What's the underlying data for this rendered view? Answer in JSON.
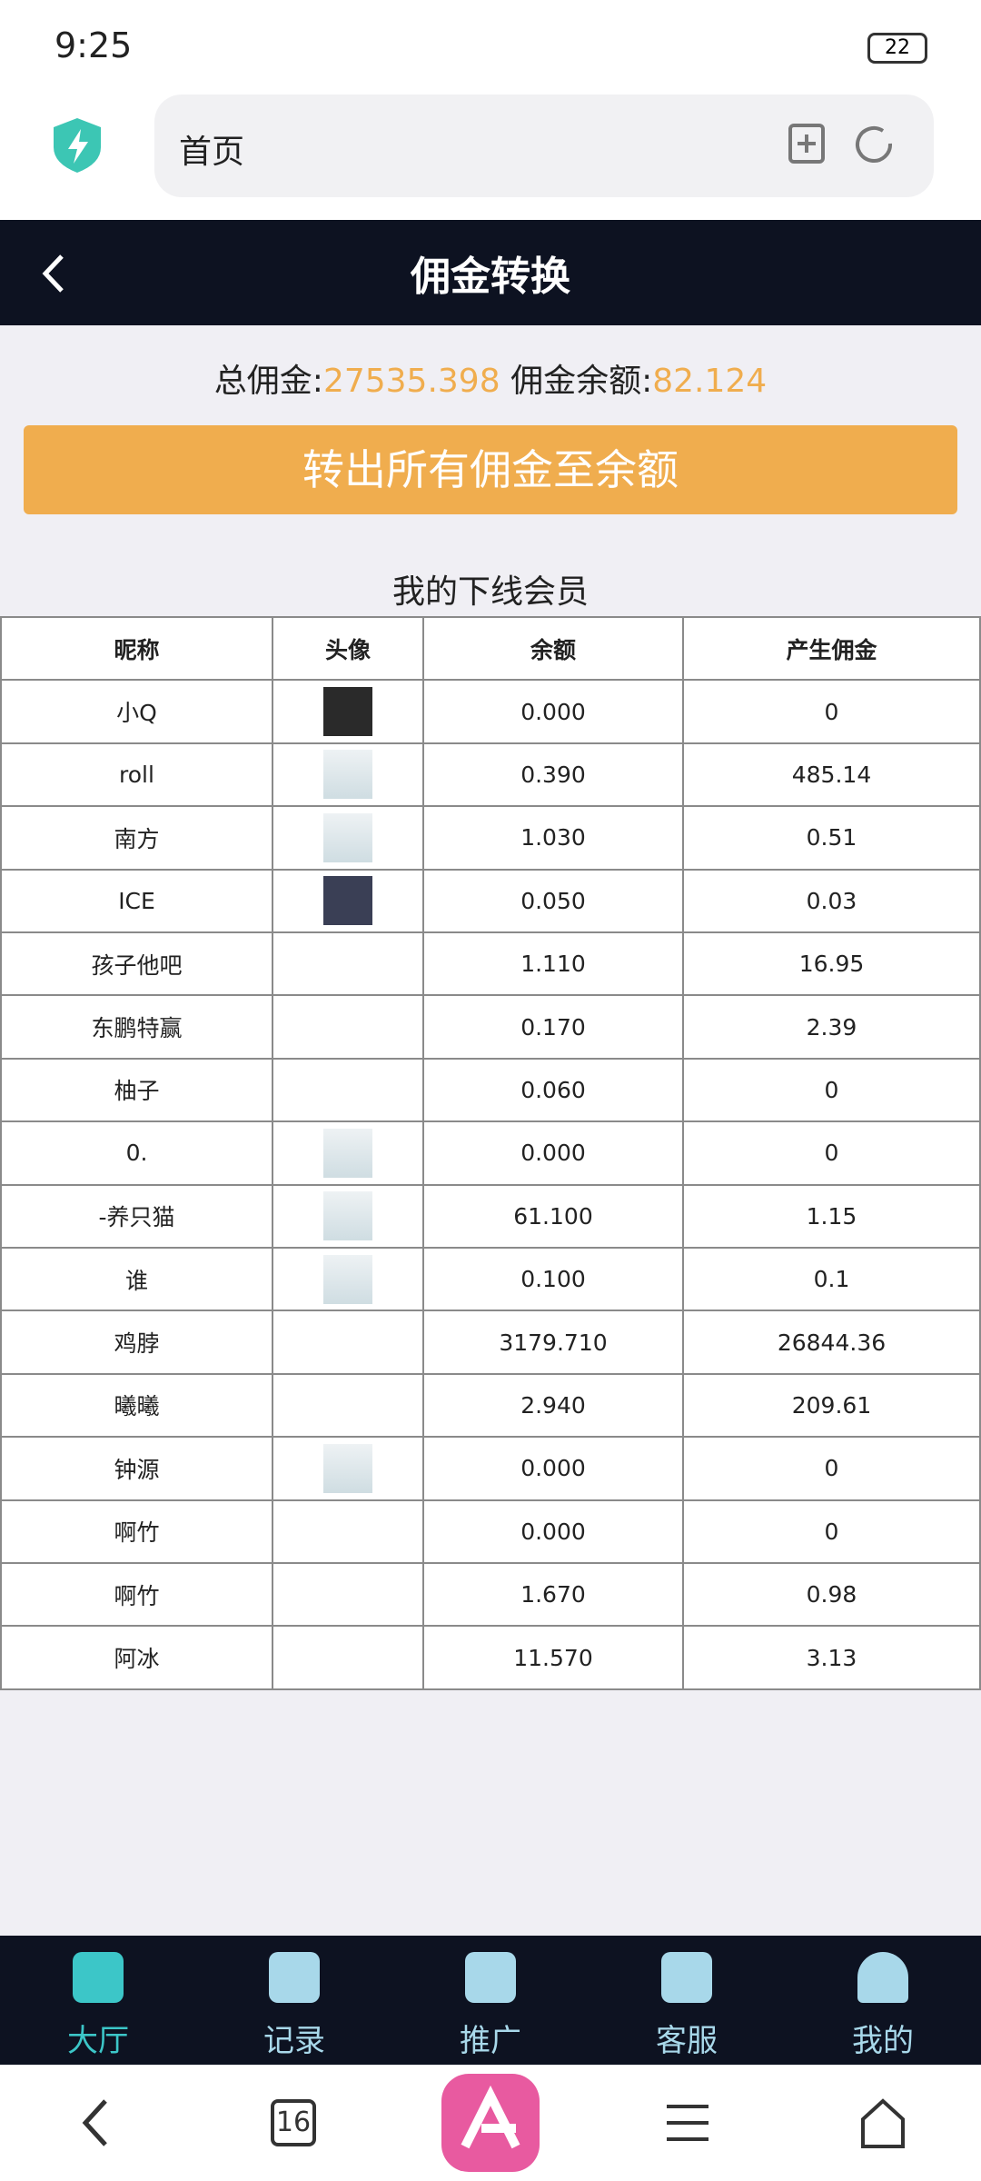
{
  "status_bar": {
    "time": "9:25",
    "battery": "22"
  },
  "browser": {
    "address": "首页",
    "tab_count": "16"
  },
  "header": {
    "title": "佣金转换"
  },
  "summary": {
    "total_label": "总佣金:",
    "total_value": "27535.398",
    "balance_label": "佣金余额:",
    "balance_value": "82.124"
  },
  "button": {
    "label": "转出所有佣金至余额"
  },
  "table": {
    "title": "我的下线会员",
    "headers": [
      "昵称",
      "头像",
      "余额",
      "产生佣金"
    ],
    "rows": [
      [
        "小Q",
        "0.000",
        "0"
      ],
      [
        "roll",
        "0.390",
        "485.14"
      ],
      [
        "南方",
        "1.030",
        "0.51"
      ],
      [
        "ICE",
        "0.050",
        "0.03"
      ],
      [
        "孩子他吧",
        "1.110",
        "16.95"
      ],
      [
        "东鹏特赢",
        "0.170",
        "2.39"
      ],
      [
        "柚子",
        "0.060",
        "0"
      ],
      [
        "0.",
        "0.000",
        "0"
      ],
      [
        "-养只猫",
        "61.100",
        "1.15"
      ],
      [
        "谁",
        "0.100",
        "0.1"
      ],
      [
        "鸡脖",
        "3179.710",
        "26844.36"
      ],
      [
        "曦曦",
        "2.940",
        "209.61"
      ],
      [
        "钟源",
        "0.000",
        "0"
      ],
      [
        "啊竹",
        "0.000",
        "0"
      ],
      [
        "啊竹",
        "1.670",
        "0.98"
      ],
      [
        "阿冰",
        "11.570",
        "3.13"
      ]
    ]
  },
  "nav": [
    "大厅",
    "记录",
    "推广",
    "客服",
    "我的"
  ]
}
